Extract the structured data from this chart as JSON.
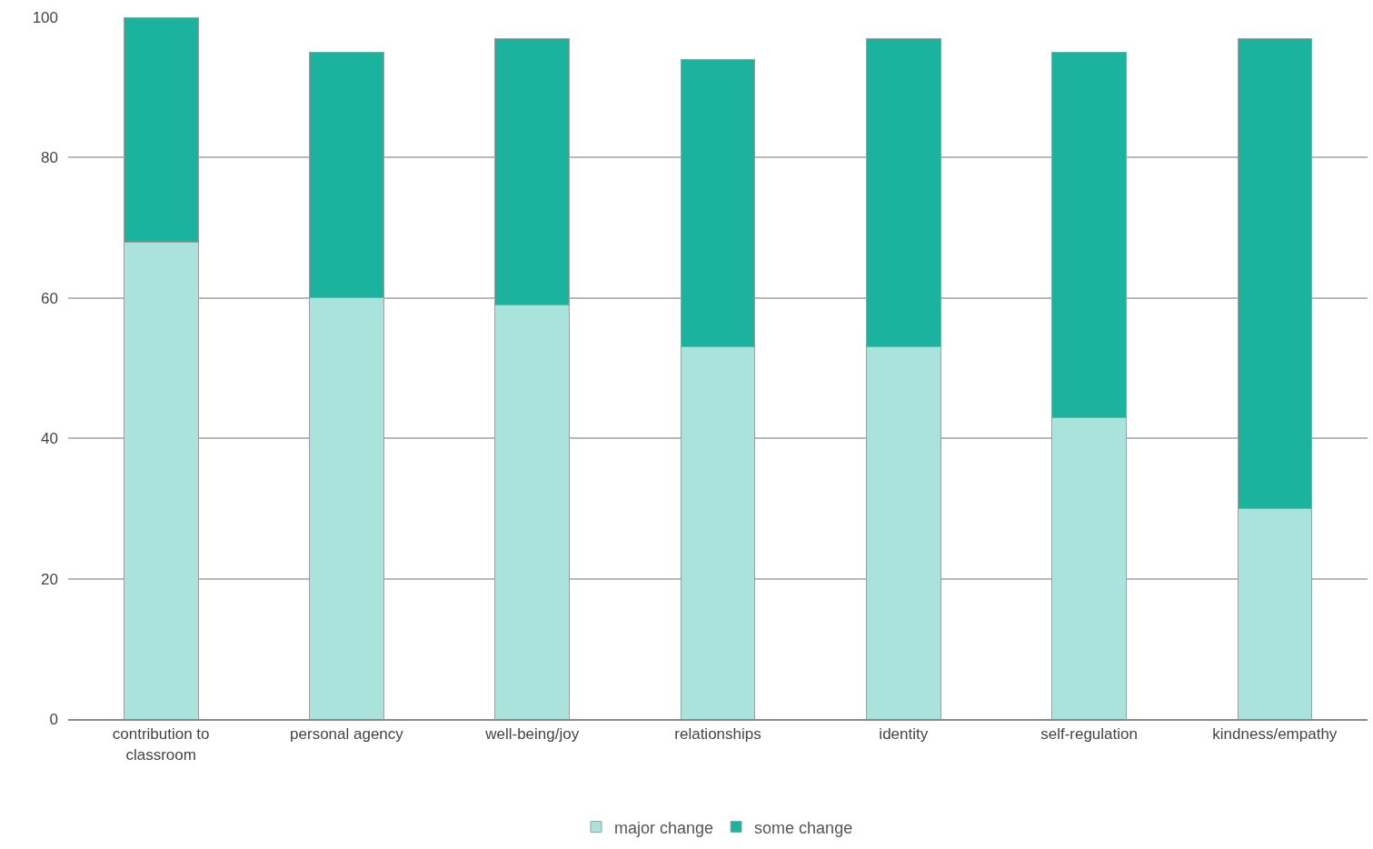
{
  "chart_data": {
    "type": "bar",
    "stacked": true,
    "categories": [
      "contribution to classroom",
      "personal agency",
      "well-being/joy",
      "relationships",
      "identity",
      "self-regulation",
      "kindness/empathy"
    ],
    "series": [
      {
        "name": "major change",
        "color": "#a9e3db",
        "values": [
          68,
          60,
          59,
          53,
          53,
          43,
          30
        ]
      },
      {
        "name": "some change",
        "color": "#1bb39e",
        "values": [
          32,
          35,
          38,
          41,
          44,
          52,
          67
        ]
      }
    ],
    "ylim": [
      0,
      100
    ],
    "yticks": [
      0,
      20,
      40,
      60,
      80,
      100
    ],
    "grid": "y",
    "legend": "bottom"
  }
}
